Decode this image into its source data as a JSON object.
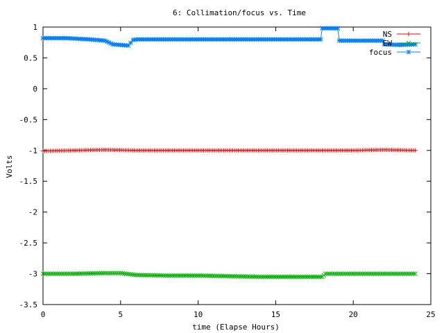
{
  "chart_data": {
    "type": "line",
    "title": "6: Collimation/focus vs. Time",
    "xlabel": "time (Elapse Hours)",
    "ylabel": "Volts",
    "xlim": [
      0,
      25
    ],
    "ylim": [
      -3.5,
      1
    ],
    "xticks": [
      0,
      5,
      10,
      15,
      20,
      25
    ],
    "yticks": [
      1,
      0.5,
      0,
      -0.5,
      -1,
      -1.5,
      -2,
      -2.5,
      -3,
      -3.5
    ],
    "grid": false,
    "legend": "top-right",
    "series": [
      {
        "name": "NS",
        "color": "#ff0000",
        "marker": "plus",
        "x": [
          0,
          2,
          4,
          6,
          8,
          10,
          12,
          14,
          16,
          18,
          20,
          22,
          24
        ],
        "y": [
          -1.01,
          -1.0,
          -0.99,
          -1.0,
          -1.0,
          -1.0,
          -1.0,
          -1.0,
          -1.0,
          -1.0,
          -1.0,
          -0.99,
          -1.0
        ]
      },
      {
        "name": "EW",
        "color": "#00b000",
        "marker": "x",
        "x": [
          0,
          2,
          4,
          5,
          6,
          8,
          10,
          12,
          14,
          16,
          18,
          18.2,
          20,
          22,
          24
        ],
        "y": [
          -3.0,
          -3.0,
          -2.99,
          -2.99,
          -3.02,
          -3.03,
          -3.03,
          -3.04,
          -3.05,
          -3.05,
          -3.05,
          -3.0,
          -3.0,
          -3.0,
          -3.0
        ]
      },
      {
        "name": "focus",
        "color": "#0080ff",
        "marker": "star",
        "x": [
          0,
          1.5,
          3,
          4,
          4.5,
          5,
          5.5,
          5.8,
          6,
          8,
          10,
          12,
          14,
          16,
          17.9,
          18,
          18.5,
          19,
          19.1,
          20,
          21,
          21.9,
          22,
          23,
          24
        ],
        "y": [
          0.82,
          0.82,
          0.8,
          0.78,
          0.72,
          0.71,
          0.7,
          0.79,
          0.8,
          0.8,
          0.8,
          0.8,
          0.8,
          0.8,
          0.8,
          0.98,
          0.98,
          0.98,
          0.78,
          0.78,
          0.78,
          0.78,
          0.72,
          0.71,
          0.72
        ]
      }
    ]
  }
}
